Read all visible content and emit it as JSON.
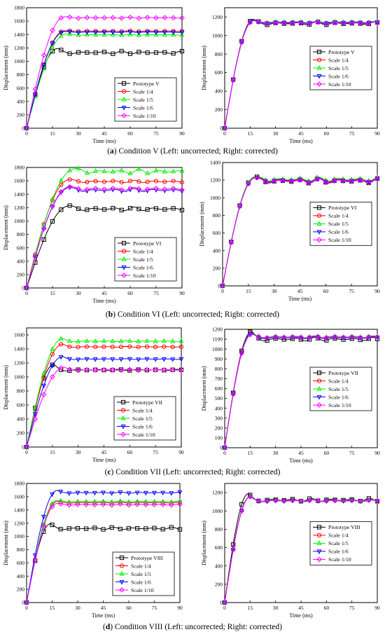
{
  "captions": [
    {
      "tag": "a",
      "text": " Condition V (Left: uncorrected; Right: corrected)"
    },
    {
      "tag": "b",
      "text": " Condition VI (Left: uncorrected; Right: corrected)"
    },
    {
      "tag": "c",
      "text": " Condition VII (Left: uncorrected; Right: corrected)"
    },
    {
      "tag": "d",
      "text": " Condition VIII (Left: uncorrected; Right: corrected)"
    }
  ],
  "colors": {
    "prototype": "#000000",
    "scale_1_4": "#ff0000",
    "scale_1_5": "#00ee00",
    "scale_1_6": "#0000ff",
    "scale_1_10": "#ff00ff"
  },
  "markers": {
    "prototype": "square",
    "scale_1_4": "circle",
    "scale_1_5": "triangle-up",
    "scale_1_6": "triangle-down",
    "scale_1_10": "diamond"
  },
  "chart_data": [
    {
      "id": "va",
      "type": "line",
      "xlabel": "Time (ms)",
      "ylabel": "Displacement (mm)",
      "xlim": [
        0,
        90
      ],
      "ylim": [
        0,
        1800
      ],
      "xticks": [
        0,
        15,
        30,
        45,
        60,
        75,
        90
      ],
      "yticks": [
        0,
        200,
        400,
        600,
        800,
        1000,
        1200,
        1400,
        1600,
        1800
      ],
      "legend_position": "lower-right",
      "series": [
        {
          "name": "Prototype V",
          "key": "prototype",
          "peak": 1190,
          "peak_t": 18,
          "final": 1130,
          "osc": 22
        },
        {
          "name": "Scale 1/4",
          "key": "scale_1_4",
          "peak": 1455,
          "peak_t": 22,
          "final": 1450,
          "osc": 6
        },
        {
          "name": "Scale 1/5",
          "key": "scale_1_5",
          "peak": 1410,
          "peak_t": 23,
          "final": 1395,
          "osc": 6
        },
        {
          "name": "Scale 1/6",
          "key": "scale_1_6",
          "peak": 1445,
          "peak_t": 22,
          "final": 1435,
          "osc": 6
        },
        {
          "name": "Scale 1/10",
          "key": "scale_1_10",
          "peak": 1665,
          "peak_t": 22,
          "final": 1650,
          "osc": 8
        }
      ]
    },
    {
      "id": "vb",
      "type": "line",
      "xlabel": "Time (ms)",
      "ylabel": "Displacement (mm)",
      "xlim": [
        0,
        90
      ],
      "ylim": [
        0,
        1300
      ],
      "xticks": [
        0,
        15,
        30,
        45,
        60,
        75,
        90
      ],
      "yticks": [
        0,
        200,
        400,
        600,
        800,
        1000,
        1200
      ],
      "legend_position": "center-right",
      "series": [
        {
          "name": "Prototype V",
          "key": "prototype",
          "peak": 1175,
          "peak_t": 17,
          "final": 1130,
          "osc": 18
        },
        {
          "name": "Scale 1/4",
          "key": "scale_1_4",
          "peak": 1165,
          "peak_t": 17,
          "final": 1140,
          "osc": 10
        },
        {
          "name": "Scale 1/5",
          "key": "scale_1_5",
          "peak": 1165,
          "peak_t": 17,
          "final": 1145,
          "osc": 8
        },
        {
          "name": "Scale 1/6",
          "key": "scale_1_6",
          "peak": 1165,
          "peak_t": 17,
          "final": 1140,
          "osc": 8
        },
        {
          "name": "Scale 1/10",
          "key": "scale_1_10",
          "peak": 1160,
          "peak_t": 17,
          "final": 1135,
          "osc": 10
        }
      ]
    },
    {
      "id": "via",
      "type": "line",
      "xlabel": "Time (ms)",
      "ylabel": "Displacement (mm)",
      "xlim": [
        0,
        90
      ],
      "ylim": [
        0,
        1800
      ],
      "xticks": [
        0,
        15,
        30,
        45,
        60,
        75,
        90
      ],
      "yticks": [
        0,
        200,
        400,
        600,
        800,
        1000,
        1200,
        1400,
        1600,
        1800
      ],
      "legend_position": "lower-right",
      "series": [
        {
          "name": "Prototype VI",
          "key": "prototype",
          "peak": 1230,
          "peak_t": 25,
          "final": 1180,
          "osc": 30
        },
        {
          "name": "Scale 1/4",
          "key": "scale_1_4",
          "peak": 1620,
          "peak_t": 25,
          "final": 1590,
          "osc": 20
        },
        {
          "name": "Scale 1/5",
          "key": "scale_1_5",
          "peak": 1780,
          "peak_t": 28,
          "final": 1740,
          "osc": 35
        },
        {
          "name": "Scale 1/6",
          "key": "scale_1_6",
          "peak": 1500,
          "peak_t": 25,
          "final": 1460,
          "osc": 25
        },
        {
          "name": "Scale 1/10",
          "key": "scale_1_10",
          "peak": 1510,
          "peak_t": 25,
          "final": 1480,
          "osc": 25
        }
      ]
    },
    {
      "id": "vib",
      "type": "line",
      "xlabel": "Time (ms)",
      "ylabel": "Displacement (mm)",
      "xlim": [
        0,
        90
      ],
      "ylim": [
        0,
        1400
      ],
      "xticks": [
        0,
        15,
        30,
        45,
        60,
        75,
        90
      ],
      "yticks": [
        0,
        200,
        400,
        600,
        800,
        1000,
        1200,
        1400
      ],
      "legend_position": "center-right",
      "series": [
        {
          "name": "Prototype VI",
          "key": "prototype",
          "peak": 1240,
          "peak_t": 19,
          "final": 1190,
          "osc": 30
        },
        {
          "name": "Scale 1/4",
          "key": "scale_1_4",
          "peak": 1230,
          "peak_t": 19,
          "final": 1200,
          "osc": 25
        },
        {
          "name": "Scale 1/5",
          "key": "scale_1_5",
          "peak": 1240,
          "peak_t": 19,
          "final": 1210,
          "osc": 25
        },
        {
          "name": "Scale 1/6",
          "key": "scale_1_6",
          "peak": 1225,
          "peak_t": 19,
          "final": 1195,
          "osc": 25
        },
        {
          "name": "Scale 1/10",
          "key": "scale_1_10",
          "peak": 1225,
          "peak_t": 19,
          "final": 1190,
          "osc": 25
        }
      ]
    },
    {
      "id": "viia",
      "type": "line",
      "xlabel": "Time (ms)",
      "ylabel": "Displacement (mm)",
      "xlim": [
        0,
        90
      ],
      "ylim": [
        0,
        1700
      ],
      "xticks": [
        0,
        15,
        30,
        45,
        60,
        75,
        90
      ],
      "yticks": [
        0,
        200,
        400,
        600,
        800,
        1000,
        1200,
        1400,
        1600
      ],
      "legend_position": "lower-right",
      "series": [
        {
          "name": "Prototype VII",
          "key": "prototype",
          "peak": 1180,
          "peak_t": 16,
          "final": 1100,
          "osc": 10
        },
        {
          "name": "Scale 1/4",
          "key": "scale_1_4",
          "peak": 1470,
          "peak_t": 21,
          "final": 1430,
          "osc": 6
        },
        {
          "name": "Scale 1/5",
          "key": "scale_1_5",
          "peak": 1550,
          "peak_t": 21,
          "final": 1510,
          "osc": 6
        },
        {
          "name": "Scale 1/6",
          "key": "scale_1_6",
          "peak": 1290,
          "peak_t": 21,
          "final": 1255,
          "osc": 6
        },
        {
          "name": "Scale 1/10",
          "key": "scale_1_10",
          "peak": 1140,
          "peak_t": 22,
          "final": 1100,
          "osc": 6
        }
      ]
    },
    {
      "id": "viib",
      "type": "line",
      "xlabel": "Time (ms)",
      "ylabel": "Displacement (mm)",
      "xlim": [
        0,
        90
      ],
      "ylim": [
        0,
        1200
      ],
      "xticks": [
        0,
        15,
        30,
        45,
        60,
        75,
        90
      ],
      "yticks": [
        0,
        100,
        200,
        300,
        400,
        500,
        600,
        700,
        800,
        900,
        1000,
        1100,
        1200
      ],
      "legend_position": "center-right",
      "series": [
        {
          "name": "Prototype VII",
          "key": "prototype",
          "peak": 1180,
          "peak_t": 16,
          "final": 1100,
          "osc": 20
        },
        {
          "name": "Scale 1/4",
          "key": "scale_1_4",
          "peak": 1170,
          "peak_t": 16,
          "final": 1120,
          "osc": 10
        },
        {
          "name": "Scale 1/5",
          "key": "scale_1_5",
          "peak": 1165,
          "peak_t": 16,
          "final": 1125,
          "osc": 10
        },
        {
          "name": "Scale 1/6",
          "key": "scale_1_6",
          "peak": 1160,
          "peak_t": 16,
          "final": 1115,
          "osc": 10
        },
        {
          "name": "Scale 1/10",
          "key": "scale_1_10",
          "peak": 1150,
          "peak_t": 16,
          "final": 1120,
          "osc": 10
        }
      ]
    },
    {
      "id": "viiia",
      "type": "line",
      "xlabel": "Time (ms)",
      "ylabel": "Displacement (mm)",
      "xlim": [
        0,
        90
      ],
      "ylim": [
        0,
        1800
      ],
      "xticks": [
        0,
        15,
        30,
        45,
        60,
        75,
        90
      ],
      "yticks": [
        0,
        200,
        400,
        600,
        800,
        1000,
        1200,
        1400,
        1600,
        1800
      ],
      "legend_position": "lower-right",
      "series": [
        {
          "name": "Prototype VIII",
          "key": "prototype",
          "peak": 1190,
          "peak_t": 14,
          "final": 1120,
          "osc": 18
        },
        {
          "name": "Scale 1/4",
          "key": "scale_1_4",
          "peak": 1530,
          "peak_t": 18,
          "final": 1510,
          "osc": 8
        },
        {
          "name": "Scale 1/5",
          "key": "scale_1_5",
          "peak": 1545,
          "peak_t": 18,
          "final": 1525,
          "osc": 8
        },
        {
          "name": "Scale 1/6",
          "key": "scale_1_6",
          "peak": 1695,
          "peak_t": 18,
          "final": 1660,
          "osc": 8
        },
        {
          "name": "Scale 1/10",
          "key": "scale_1_10",
          "peak": 1500,
          "peak_t": 18,
          "final": 1480,
          "osc": 8
        }
      ]
    },
    {
      "id": "viiib",
      "type": "line",
      "xlabel": "Time (ms)",
      "ylabel": "Displacement (mm)",
      "xlim": [
        0,
        90
      ],
      "ylim": [
        0,
        1300
      ],
      "xticks": [
        0,
        15,
        30,
        45,
        60,
        75,
        90
      ],
      "yticks": [
        0,
        200,
        400,
        600,
        800,
        1000,
        1200
      ],
      "legend_position": "center-right",
      "series": [
        {
          "name": "Prototype VIII",
          "key": "prototype",
          "peak": 1190,
          "peak_t": 14,
          "final": 1120,
          "osc": 18
        },
        {
          "name": "Scale 1/4",
          "key": "scale_1_4",
          "peak": 1160,
          "peak_t": 15,
          "final": 1115,
          "osc": 10
        },
        {
          "name": "Scale 1/5",
          "key": "scale_1_5",
          "peak": 1160,
          "peak_t": 15,
          "final": 1115,
          "osc": 10
        },
        {
          "name": "Scale 1/6",
          "key": "scale_1_6",
          "peak": 1155,
          "peak_t": 15,
          "final": 1110,
          "osc": 10
        },
        {
          "name": "Scale 1/10",
          "key": "scale_1_10",
          "peak": 1155,
          "peak_t": 15,
          "final": 1110,
          "osc": 10
        }
      ]
    }
  ]
}
